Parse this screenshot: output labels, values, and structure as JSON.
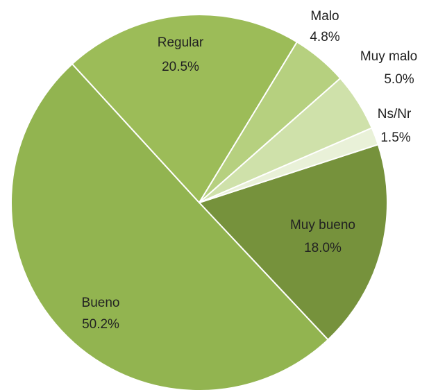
{
  "chart_data": {
    "type": "pie",
    "categories": [
      "Muy bueno",
      "Bueno",
      "Regular",
      "Malo",
      "Muy malo",
      "Ns/Nr"
    ],
    "values": [
      18.0,
      50.2,
      20.5,
      4.8,
      5.0,
      1.5
    ],
    "value_labels": [
      "18.0%",
      "50.2%",
      "20.5%",
      "4.8%",
      "5.0%",
      "1.5%"
    ],
    "colors": [
      "#76923c",
      "#92b450",
      "#9cbc58",
      "#b6d07f",
      "#cfe1aa",
      "#e9f1d8"
    ]
  }
}
